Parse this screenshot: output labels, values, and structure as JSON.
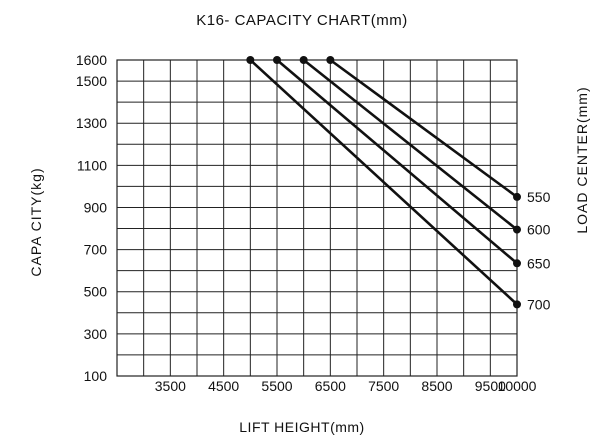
{
  "chart_data": {
    "type": "line",
    "title": "K16- CAPACITY  CHART(mm)",
    "xlabel": "LIFT  HEIGHT(mm)",
    "ylabel": "CAPA  CITY(kg)",
    "right_label": "LOAD  CENTER(mm)",
    "xlim": [
      2500,
      10000
    ],
    "ylim": [
      100,
      1600
    ],
    "x_ticks": [
      3500,
      4500,
      5500,
      6500,
      7500,
      8500,
      9500,
      10000
    ],
    "y_ticks": [
      100,
      300,
      500,
      700,
      900,
      1100,
      1300,
      1500,
      1600
    ],
    "grid": true,
    "series": [
      {
        "name": "550",
        "x": [
          6500,
          10000
        ],
        "y": [
          1600,
          950
        ]
      },
      {
        "name": "600",
        "x": [
          6000,
          10000
        ],
        "y": [
          1600,
          795
        ]
      },
      {
        "name": "650",
        "x": [
          5500,
          10000
        ],
        "y": [
          1600,
          635
        ]
      },
      {
        "name": "700",
        "x": [
          5000,
          10000
        ],
        "y": [
          1600,
          440
        ]
      }
    ],
    "colors": {
      "line": "#111111",
      "grid": "#222222"
    }
  }
}
